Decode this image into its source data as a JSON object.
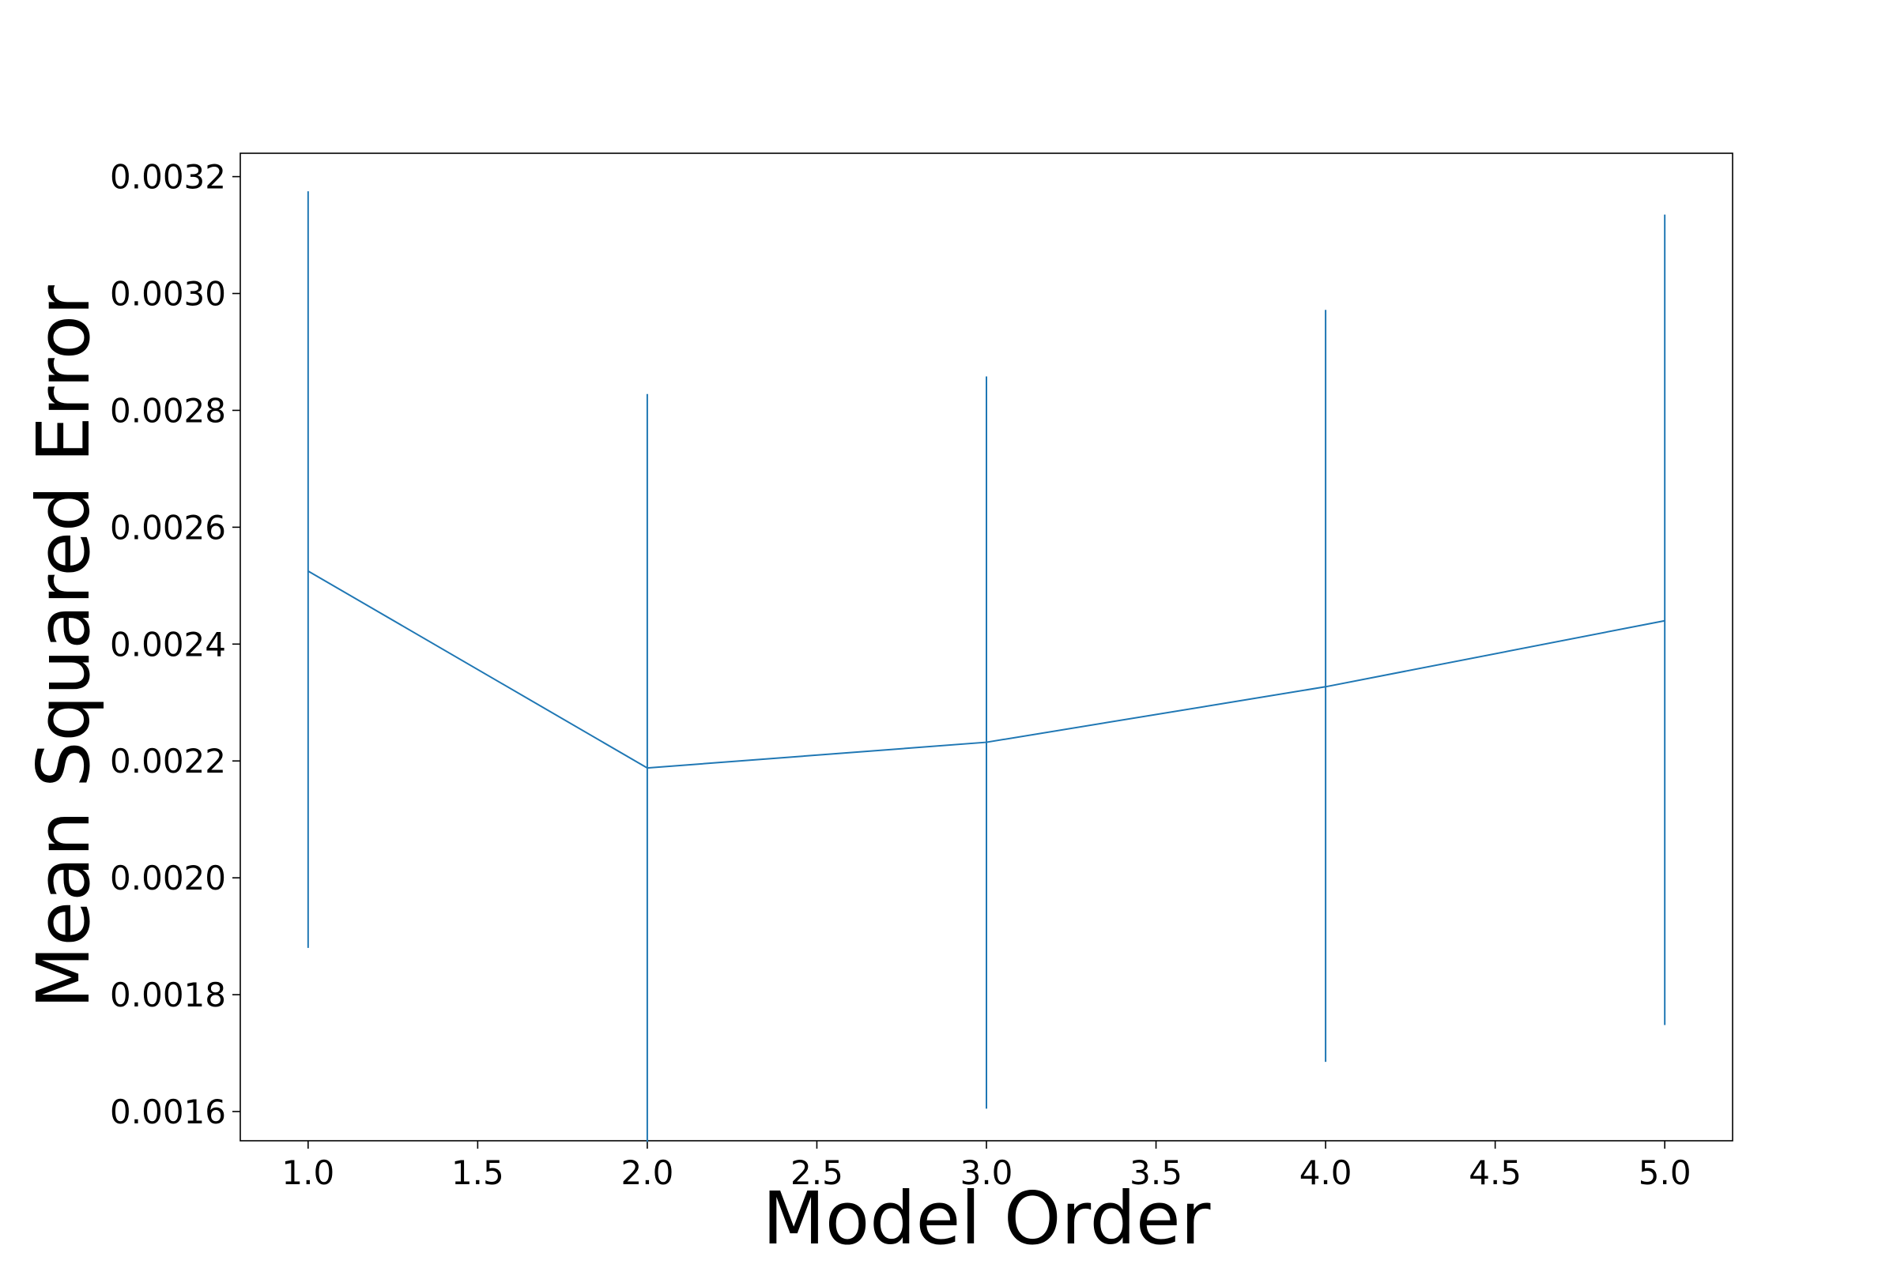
{
  "chart_data": {
    "type": "line",
    "xlabel": "Model Order",
    "ylabel": "Mean Squared Error",
    "xlim": [
      0.8,
      5.2
    ],
    "ylim": [
      0.00155,
      0.00324
    ],
    "xticks": [
      "1.0",
      "1.5",
      "2.0",
      "2.5",
      "3.0",
      "3.5",
      "4.0",
      "4.5",
      "5.0"
    ],
    "yticks": [
      "0.0016",
      "0.0018",
      "0.0020",
      "0.0022",
      "0.0024",
      "0.0026",
      "0.0028",
      "0.0030",
      "0.0032"
    ],
    "grid": false,
    "color": "#1f77b4",
    "series": [
      {
        "x": [
          1,
          2,
          3,
          4,
          5
        ],
        "y": [
          0.002525,
          0.002188,
          0.002232,
          0.002327,
          0.00244
        ],
        "yerr_low": [
          0.00188,
          0.001548,
          0.001605,
          0.001685,
          0.001748
        ],
        "yerr_high": [
          0.003175,
          0.002828,
          0.002858,
          0.002972,
          0.003135
        ]
      }
    ]
  }
}
